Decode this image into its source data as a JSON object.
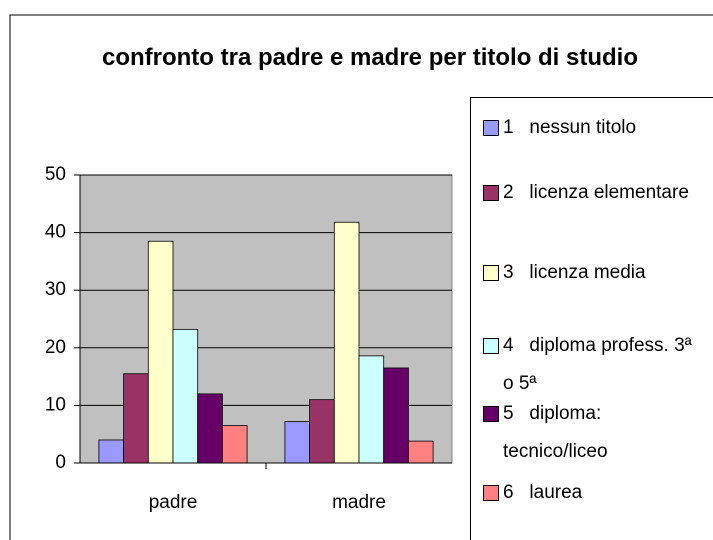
{
  "chart_data": {
    "type": "bar",
    "title": "confronto tra padre e madre per titolo di studio",
    "categories": [
      "padre",
      "madre"
    ],
    "series": [
      {
        "name": "1   nessun titolo",
        "color": "#9999ff",
        "values": [
          4,
          7.2
        ]
      },
      {
        "name": "2   licenza elementare",
        "color": "#993366",
        "values": [
          15.5,
          11
        ]
      },
      {
        "name": "3   licenza media",
        "color": "#ffffcc",
        "values": [
          38.5,
          41.8
        ]
      },
      {
        "name": "4   diploma profess. 3ª o 5ª",
        "color": "#ccffff",
        "values": [
          23.2,
          18.6
        ]
      },
      {
        "name": "5   diploma: tecnico/liceo",
        "color": "#660066",
        "values": [
          12,
          16.5
        ]
      },
      {
        "name": "6   laurea",
        "color": "#ff8080",
        "values": [
          6.5,
          3.8
        ]
      }
    ],
    "ylim": [
      0,
      50
    ],
    "yticks": [
      0,
      10,
      20,
      30,
      40,
      50
    ],
    "grid": true
  }
}
